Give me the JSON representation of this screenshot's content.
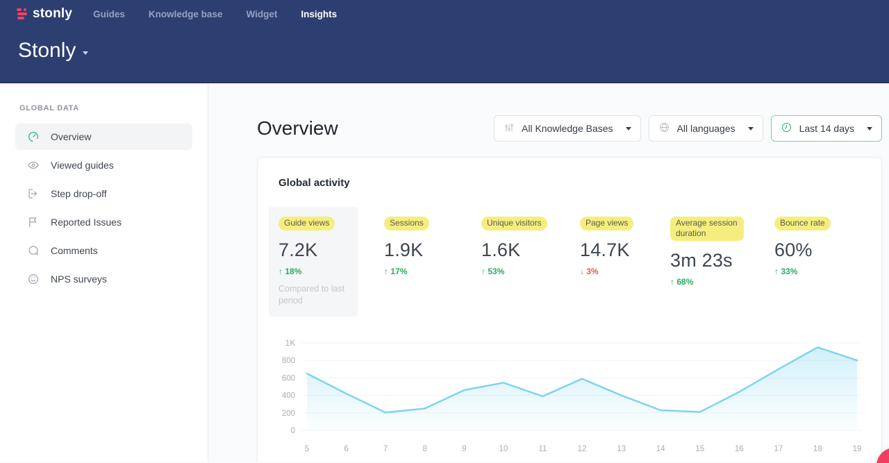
{
  "header": {
    "logo_text": "stonly",
    "nav": [
      {
        "label": "Guides"
      },
      {
        "label": "Knowledge base"
      },
      {
        "label": "Widget"
      },
      {
        "label": "Insights"
      }
    ],
    "workspace_title": "Stonly"
  },
  "sidebar": {
    "section_label": "GLOBAL DATA",
    "items": [
      {
        "label": "Overview",
        "icon": "gauge-icon",
        "active": true
      },
      {
        "label": "Viewed guides",
        "icon": "eye-icon",
        "active": false
      },
      {
        "label": "Step drop-off",
        "icon": "step-exit-icon",
        "active": false
      },
      {
        "label": "Reported Issues",
        "icon": "flag-icon",
        "active": false
      },
      {
        "label": "Comments",
        "icon": "comment-icon",
        "active": false
      },
      {
        "label": "NPS surveys",
        "icon": "smiley-icon",
        "active": false
      }
    ]
  },
  "main": {
    "title": "Overview",
    "filters": [
      {
        "label": "All Knowledge Bases",
        "icon": "sliders-icon"
      },
      {
        "label": "All languages",
        "icon": "globe-icon"
      },
      {
        "label": "Last 14 days",
        "icon": "clock-icon",
        "accent": true
      }
    ],
    "card": {
      "title": "Global activity",
      "metrics": [
        {
          "label": "Guide views",
          "value": "7.2K",
          "arrow": "↑",
          "change": "18%",
          "direction": "up",
          "note": "Compared to last period",
          "selected": true
        },
        {
          "label": "Sessions",
          "value": "1.9K",
          "arrow": "↑",
          "change": "17%",
          "direction": "up"
        },
        {
          "label": "Unique visitors",
          "value": "1.6K",
          "arrow": "↑",
          "change": "53%",
          "direction": "up"
        },
        {
          "label": "Page views",
          "value": "14.7K",
          "arrow": "↓",
          "change": "3%",
          "direction": "down"
        },
        {
          "label": "Average session duration",
          "value": "3m 23s",
          "arrow": "↑",
          "change": "68%",
          "direction": "up"
        },
        {
          "label": "Bounce rate",
          "value": "60%",
          "arrow": "↑",
          "change": "33%",
          "direction": "up"
        }
      ]
    }
  },
  "chart_data": {
    "type": "area",
    "title": "Global activity",
    "x": [
      5,
      6,
      7,
      8,
      9,
      10,
      11,
      12,
      13,
      14,
      15,
      16,
      17,
      18,
      19
    ],
    "series": [
      {
        "name": "Guide views",
        "values": [
          650,
          420,
          205,
          250,
          460,
          545,
          390,
          590,
          400,
          230,
          210,
          440,
          700,
          950,
          800
        ]
      }
    ],
    "ylim": [
      0,
      1000
    ],
    "ytick_values": [
      0,
      200,
      400,
      600,
      800,
      1000
    ],
    "ytick_labels": [
      "0",
      "200",
      "400",
      "600",
      "800",
      "1K"
    ],
    "grid": true,
    "legend": "none",
    "line_color": "#7dd4f0",
    "fill_color": "#7dd4f0"
  },
  "colors": {
    "header_bg": "#2d3e70",
    "logo_pink": "#f04169",
    "accent_green": "#27ae60",
    "negative_red": "#eb5757",
    "highlight_yellow": "#f5ee7e",
    "chart_line": "#7dd4f0"
  }
}
